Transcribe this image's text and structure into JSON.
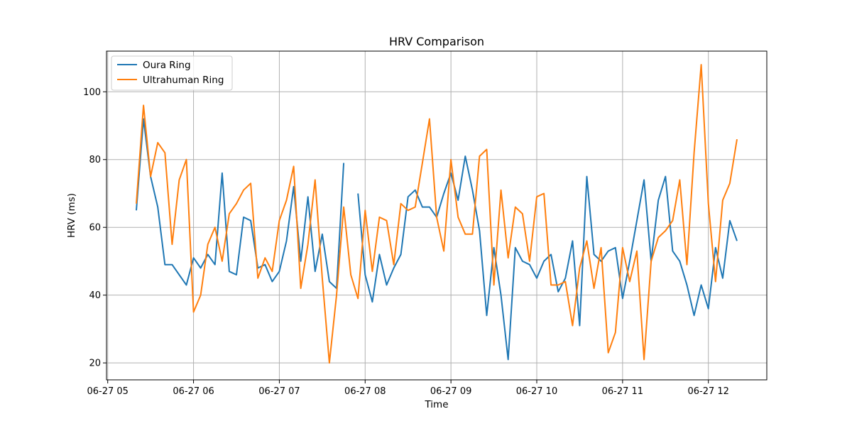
{
  "chart_data": {
    "type": "line",
    "title": "HRV Comparison",
    "xlabel": "Time",
    "ylabel": "HRV (ms)",
    "grid": true,
    "legend_position": "top-left",
    "x_axis": {
      "type": "time",
      "date": "2024-06-27",
      "range": [
        "05:20",
        "12:40"
      ],
      "ticks": [
        "05:00",
        "06:00",
        "07:00",
        "08:00",
        "09:00",
        "10:00",
        "11:00",
        "12:00"
      ],
      "tick_labels": [
        "06-27 05",
        "06-27 06",
        "06-27 07",
        "06-27 08",
        "06-27 09",
        "06-27 10",
        "06-27 11",
        "06-27 12"
      ]
    },
    "y_axis": {
      "range": [
        15,
        112
      ],
      "ticks": [
        20,
        40,
        60,
        80,
        100
      ]
    },
    "series": [
      {
        "name": "Oura Ring",
        "color": "#1f77b4",
        "x": [
          "05:20",
          "05:25",
          "05:30",
          "05:35",
          "05:40",
          "05:45",
          "05:50",
          "05:55",
          "06:00",
          "06:05",
          "06:10",
          "06:15",
          "06:20",
          "06:25",
          "06:30",
          "06:35",
          "06:40",
          "06:45",
          "06:50",
          "06:55",
          "07:00",
          "07:05",
          "07:10",
          "07:15",
          "07:20",
          "07:25",
          "07:30",
          "07:35",
          "07:40",
          "07:45",
          "07:50",
          "07:55",
          "08:00",
          "08:05",
          "08:10",
          "08:15",
          "08:20",
          "08:25",
          "08:30",
          "08:35",
          "08:40",
          "08:45",
          "08:50",
          "08:55",
          "09:00",
          "09:05",
          "09:10",
          "09:15",
          "09:20",
          "09:25",
          "09:30",
          "09:35",
          "09:40",
          "09:45",
          "09:50",
          "09:55",
          "10:00",
          "10:05",
          "10:10",
          "10:15",
          "10:20",
          "10:25",
          "10:30",
          "10:35",
          "10:40",
          "10:45",
          "10:50",
          "10:55",
          "11:00",
          "11:05",
          "11:10",
          "11:15",
          "11:20",
          "11:25",
          "11:30",
          "11:35",
          "11:40",
          "11:45",
          "11:50",
          "11:55",
          "12:00",
          "12:05",
          "12:10",
          "12:15",
          "12:20"
        ],
        "y": [
          65,
          92,
          75,
          66,
          49,
          49,
          46,
          43,
          51,
          48,
          52,
          49,
          76,
          47,
          46,
          63,
          62,
          48,
          49,
          44,
          47,
          56,
          72,
          50,
          69,
          47,
          58,
          44,
          42,
          79,
          null,
          70,
          46,
          38,
          52,
          43,
          48,
          52,
          69,
          71,
          66,
          66,
          63,
          70,
          76,
          68,
          81,
          71,
          59,
          34,
          54,
          40,
          21,
          54,
          50,
          49,
          45,
          50,
          52,
          41,
          45,
          56,
          31,
          75,
          52,
          50,
          53,
          54,
          39,
          50,
          62,
          74,
          50,
          68,
          75,
          53,
          50,
          43,
          34,
          43,
          36,
          54,
          45,
          62,
          56
        ]
      },
      {
        "name": "Ultrahuman Ring",
        "color": "#ff7f0e",
        "x": [
          "05:20",
          "05:25",
          "05:30",
          "05:35",
          "05:40",
          "05:45",
          "05:50",
          "05:55",
          "06:00",
          "06:05",
          "06:10",
          "06:15",
          "06:20",
          "06:25",
          "06:30",
          "06:35",
          "06:40",
          "06:45",
          "06:50",
          "06:55",
          "07:00",
          "07:05",
          "07:10",
          "07:15",
          "07:20",
          "07:25",
          "07:30",
          "07:35",
          "07:40",
          "07:45",
          "07:50",
          "07:55",
          "08:00",
          "08:05",
          "08:10",
          "08:15",
          "08:20",
          "08:25",
          "08:30",
          "08:35",
          "08:40",
          "08:45",
          "08:50",
          "08:55",
          "09:00",
          "09:05",
          "09:10",
          "09:15",
          "09:20",
          "09:25",
          "09:30",
          "09:35",
          "09:40",
          "09:45",
          "09:50",
          "09:55",
          "10:00",
          "10:05",
          "10:10",
          "10:15",
          "10:20",
          "10:25",
          "10:30",
          "10:35",
          "10:40",
          "10:45",
          "10:50",
          "10:55",
          "11:00",
          "11:05",
          "11:10",
          "11:15",
          "11:20",
          "11:25",
          "11:30",
          "11:35",
          "11:40",
          "11:45",
          "11:50",
          "11:55",
          "12:00",
          "12:05",
          "12:10",
          "12:15",
          "12:20"
        ],
        "y": [
          67,
          96,
          75,
          85,
          82,
          55,
          74,
          80,
          35,
          40,
          55,
          60,
          50,
          64,
          67,
          71,
          73,
          45,
          51,
          47,
          62,
          68,
          78,
          42,
          55,
          74,
          45,
          20,
          40,
          66,
          46,
          39,
          65,
          47,
          63,
          62,
          49,
          67,
          65,
          66,
          79,
          92,
          63,
          53,
          80,
          63,
          58,
          58,
          81,
          83,
          43,
          71,
          51,
          66,
          64,
          50,
          69,
          70,
          43,
          43,
          44,
          31,
          48,
          56,
          42,
          54,
          23,
          29,
          54,
          44,
          53,
          21,
          50,
          57,
          59,
          62,
          74,
          49,
          82,
          108,
          67,
          44,
          68,
          73,
          86
        ]
      }
    ]
  }
}
